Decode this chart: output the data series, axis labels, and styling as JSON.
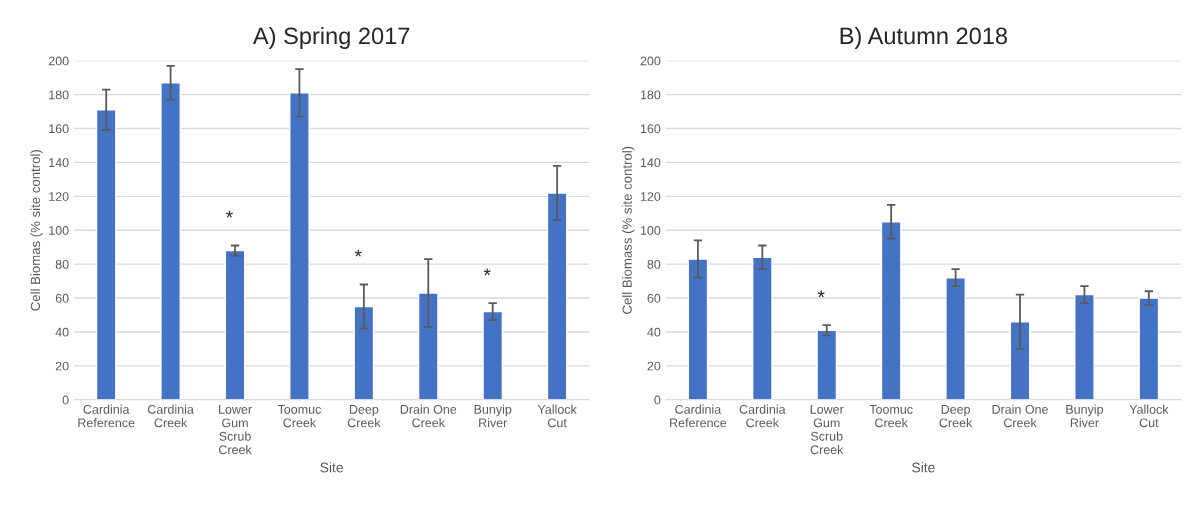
{
  "chart_data": [
    {
      "type": "bar",
      "title": "A) Spring 2017",
      "xlabel": "Site",
      "ylabel": "Cell Biomas (% site control)",
      "categories": [
        "Cardinia\nReference",
        "Cardinia\nCreek",
        "Lower\nGum\nScrub\nCreek",
        "Toomuc\nCreek",
        "Deep\nCreek",
        "Drain One\nCreek",
        "Bunyip\nRiver",
        "Yallock\nCut"
      ],
      "series": [
        {
          "color": "#4472c4",
          "values": [
            171,
            187,
            88,
            181,
            55,
            63,
            52,
            122
          ],
          "errors": [
            12,
            10,
            3,
            14,
            13,
            20,
            5,
            16
          ],
          "value_labels": [
            null,
            null,
            "*",
            null,
            "*",
            null,
            "*",
            null
          ]
        }
      ],
      "ylim": [
        0,
        200
      ],
      "yticks": [
        0,
        20,
        40,
        60,
        80,
        100,
        120,
        140,
        160,
        180,
        200
      ],
      "grid": "y",
      "legend": false
    },
    {
      "type": "bar",
      "title": "B) Autumn 2018",
      "xlabel": "Site",
      "ylabel": "Cell Biomass (% site control)",
      "categories": [
        "Cardinia\nReference",
        "Cardinia\nCreek",
        "Lower\nGum\nScrub\nCreek",
        "Toomuc\nCreek",
        "Deep\nCreek",
        "Drain One\nCreek",
        "Bunyip\nRiver",
        "Yallock\nCut"
      ],
      "series": [
        {
          "color": "#4472c4",
          "values": [
            83,
            84,
            41,
            105,
            72,
            46,
            62,
            60
          ],
          "errors": [
            11,
            7,
            3,
            10,
            5,
            16,
            5,
            4
          ],
          "value_labels": [
            null,
            null,
            "*",
            null,
            null,
            null,
            null,
            null
          ]
        }
      ],
      "ylim": [
        0,
        200
      ],
      "yticks": [
        0,
        20,
        40,
        60,
        80,
        100,
        120,
        140,
        160,
        180,
        200
      ],
      "grid": "y",
      "legend": false
    }
  ]
}
